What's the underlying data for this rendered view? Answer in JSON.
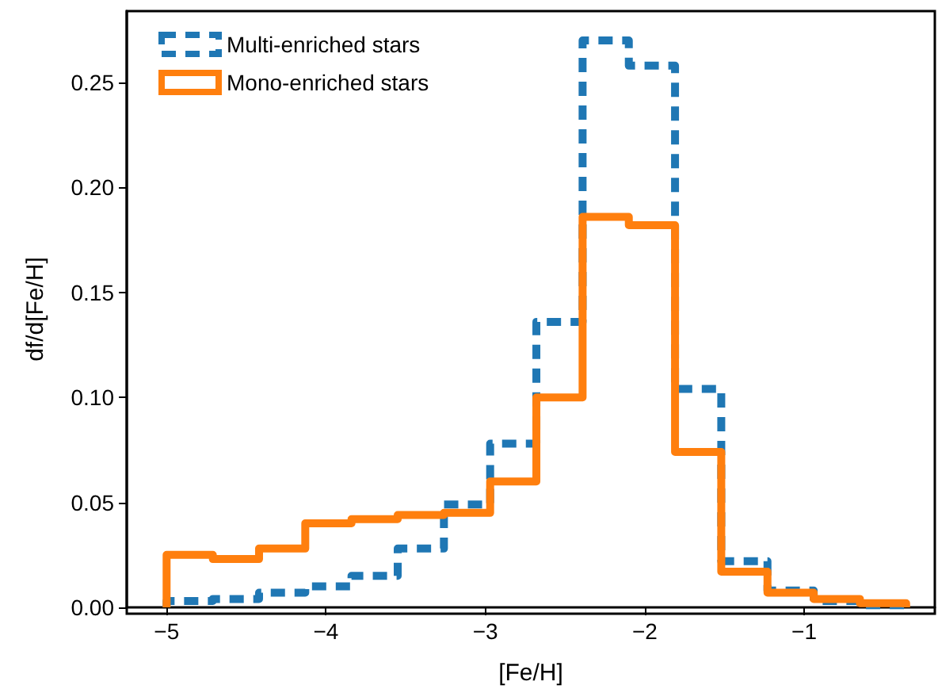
{
  "chart_data": {
    "type": "histogram",
    "xlabel": "[Fe/H]",
    "ylabel": "df/d[Fe/H]",
    "bins": [
      -5,
      -4.71,
      -4.42,
      -4.13,
      -3.84,
      -3.55,
      -3.26,
      -2.97,
      -2.68,
      -2.39,
      -2.1,
      -1.81,
      -1.52,
      -1.23,
      -0.94,
      -0.65,
      -0.36
    ],
    "series": [
      {
        "name": "Multi-enriched stars",
        "color": "#1f77b4",
        "line_style": "dashed",
        "values": [
          0.003,
          0.004,
          0.007,
          0.01,
          0.015,
          0.028,
          0.049,
          0.078,
          0.136,
          0.27,
          0.258,
          0.104,
          0.022,
          0.008,
          0.003,
          0.001
        ]
      },
      {
        "name": "Mono-enriched stars",
        "color": "#ff7f0e",
        "line_style": "solid",
        "values": [
          0.025,
          0.023,
          0.028,
          0.04,
          0.042,
          0.044,
          0.045,
          0.06,
          0.1,
          0.186,
          0.182,
          0.074,
          0.017,
          0.007,
          0.004,
          0.002
        ]
      }
    ],
    "xlim": [
      -5.25,
      -0.18
    ],
    "xticks": [
      {
        "value": -5,
        "label": "−5"
      },
      {
        "value": -4,
        "label": "−4"
      },
      {
        "value": -3,
        "label": "−3"
      },
      {
        "value": -2,
        "label": "−2"
      },
      {
        "value": -1,
        "label": "−1"
      }
    ],
    "ylim": [
      0,
      0.284
    ],
    "yticks": [
      {
        "value": 0,
        "label": "0.00"
      },
      {
        "value": 0.05,
        "label": "0.05"
      },
      {
        "value": 0.1,
        "label": "0.10"
      },
      {
        "value": 0.15,
        "label": "0.15"
      },
      {
        "value": 0.2,
        "label": "0.20"
      },
      {
        "value": 0.25,
        "label": "0.25"
      }
    ],
    "grid": false,
    "legend": "top left"
  }
}
